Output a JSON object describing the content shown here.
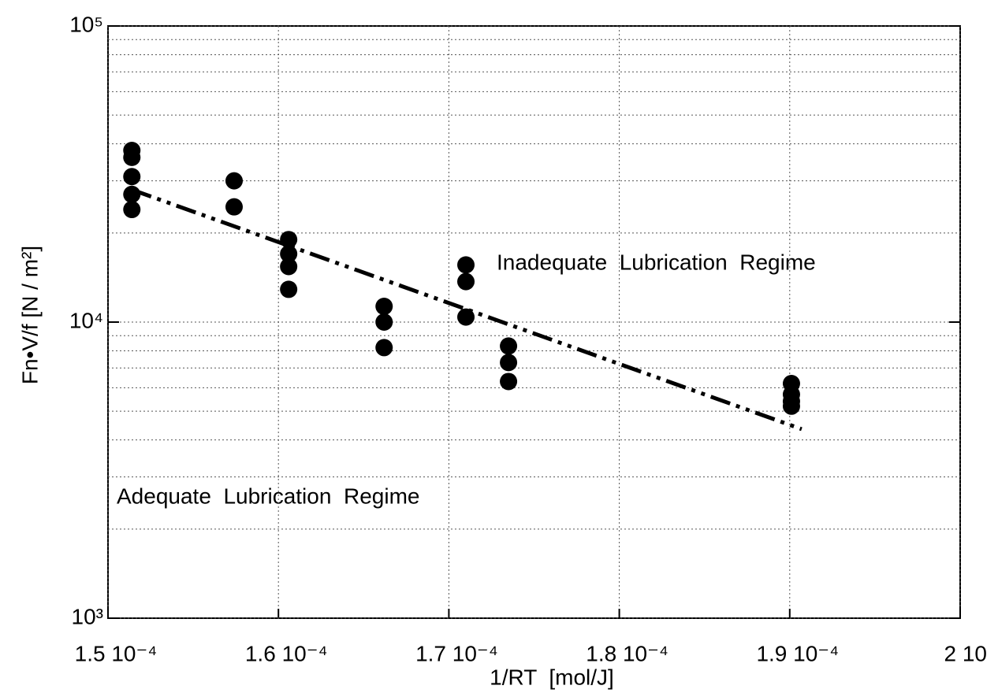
{
  "chart_data": {
    "type": "scatter",
    "x_label": "1/RT  [mol/J]",
    "y_label": "Fn•V/f [N / m²]",
    "log_y": true,
    "grid": true,
    "xlim": [
      0.00015,
      0.0002
    ],
    "xticks": [
      {
        "value": 0.00015,
        "label": "1.5 10⁻⁴"
      },
      {
        "value": 0.00016,
        "label": "1.6 10⁻⁴"
      },
      {
        "value": 0.00017,
        "label": "1.7 10⁻⁴"
      },
      {
        "value": 0.00018,
        "label": "1.8 10⁻⁴"
      },
      {
        "value": 0.00019,
        "label": "1.9 10⁻⁴"
      },
      {
        "value": 0.0002,
        "label": "2 10"
      }
    ],
    "ylim": [
      1000,
      100000
    ],
    "yticks": [
      {
        "value": 1000,
        "label": "10³"
      },
      {
        "value": 10000,
        "label": "10⁴"
      },
      {
        "value": 100000,
        "label": "10⁵"
      }
    ],
    "y_minor_ticks": [
      2000,
      3000,
      4000,
      5000,
      6000,
      7000,
      8000,
      9000,
      20000,
      30000,
      40000,
      50000,
      60000,
      70000,
      80000,
      90000
    ],
    "annotations": [
      "Inadequate  Lubrication  Regime",
      "Adequate  Lubrication  Regime"
    ],
    "series": [
      {
        "color": "#000000",
        "x": [
          0.0001514,
          0.0001514,
          0.0001514,
          0.0001514,
          0.0001514,
          0.0001574,
          0.0001574,
          0.0001606,
          0.0001606,
          0.0001606,
          0.0001606,
          0.0001662,
          0.0001662,
          0.0001662,
          0.000171,
          0.000171,
          0.000171,
          0.0001735,
          0.0001735,
          0.0001735,
          0.0001901,
          0.0001901,
          0.0001901,
          0.0001901
        ],
        "values": [
          38000,
          36000,
          31000,
          27000,
          24000,
          30000,
          24500,
          19000,
          17000,
          15400,
          12900,
          11300,
          10000,
          8200,
          15600,
          13700,
          10400,
          8300,
          7300,
          6300,
          6200,
          5700,
          5400,
          5200
        ]
      }
    ],
    "fit_line": {
      "color": "#000000",
      "x": [
        0.0001514,
        0.0001907
      ],
      "values": [
        28000,
        4350
      ]
    }
  }
}
